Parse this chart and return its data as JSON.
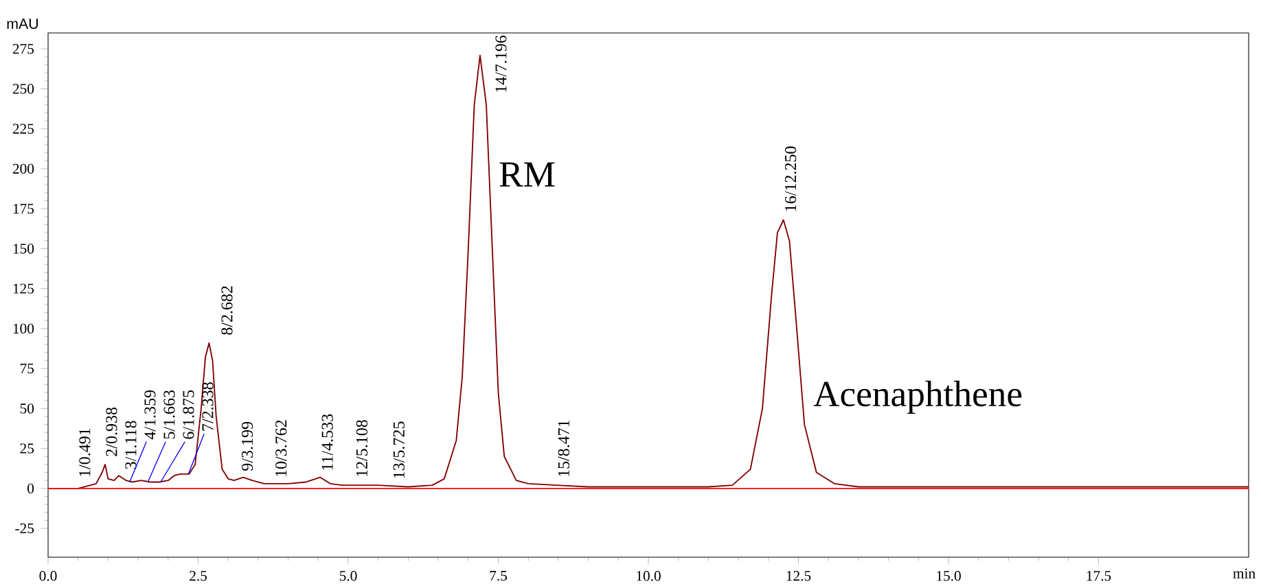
{
  "chart_data": {
    "type": "line",
    "xlabel": "min",
    "ylabel": "mAU",
    "xlim": [
      0,
      20
    ],
    "ylim": [
      -43,
      285
    ],
    "xticks": [
      {
        "value": 0,
        "label": "0.0"
      },
      {
        "value": 2.5,
        "label": "2.5"
      },
      {
        "value": 5,
        "label": "5.0"
      },
      {
        "value": 7.5,
        "label": "7.5"
      },
      {
        "value": 10,
        "label": "10.0"
      },
      {
        "value": 12.5,
        "label": "12.5"
      },
      {
        "value": 15,
        "label": "15.0"
      },
      {
        "value": 17.5,
        "label": "17.5"
      }
    ],
    "yticks": [
      -25,
      0,
      25,
      50,
      75,
      100,
      125,
      150,
      175,
      200,
      225,
      250,
      275
    ],
    "series": [
      {
        "color": "#800000",
        "x": [
          0,
          0.5,
          0.8,
          0.9,
          0.95,
          1.0,
          1.1,
          1.18,
          1.3,
          1.4,
          1.55,
          1.7,
          1.85,
          2.0,
          2.1,
          2.2,
          2.35,
          2.45,
          2.55,
          2.62,
          2.682,
          2.74,
          2.8,
          2.9,
          3.0,
          3.1,
          3.25,
          3.4,
          3.6,
          3.8,
          4.0,
          4.3,
          4.53,
          4.7,
          4.9,
          5.1,
          5.5,
          6.0,
          6.4,
          6.6,
          6.8,
          6.9,
          7.0,
          7.1,
          7.196,
          7.3,
          7.4,
          7.5,
          7.6,
          7.8,
          8.0,
          8.47,
          9.0,
          10.0,
          11.0,
          11.4,
          11.7,
          11.9,
          12.05,
          12.15,
          12.25,
          12.35,
          12.45,
          12.6,
          12.8,
          13.1,
          13.5,
          14.0,
          17.0,
          20.0
        ],
        "values": [
          0,
          0,
          3,
          10,
          15,
          6,
          5,
          8,
          5,
          4,
          5,
          4,
          4,
          5,
          8,
          9,
          9,
          15,
          50,
          82,
          91,
          80,
          45,
          12,
          6,
          5,
          7,
          5,
          3,
          3,
          3,
          4,
          7,
          3,
          2,
          2,
          2,
          1,
          2,
          6,
          30,
          70,
          150,
          240,
          271,
          240,
          150,
          60,
          20,
          5,
          3,
          2,
          1,
          1,
          1,
          2,
          12,
          50,
          120,
          160,
          168,
          155,
          110,
          40,
          10,
          3,
          1,
          1,
          1,
          1
        ]
      }
    ],
    "ref_lines": [
      {
        "axis": "y",
        "value": 0,
        "color": "#ff0000"
      }
    ],
    "annotations": [
      {
        "text": "1/0.491",
        "x": 0.491,
        "y": 2
      },
      {
        "text": "2/0.938",
        "x": 0.938,
        "y": 15
      },
      {
        "text": "3/1.118",
        "x": 1.118,
        "y": 7
      },
      {
        "text": "4/1.359",
        "x": 1.359,
        "y": 4
      },
      {
        "text": "5/1.663",
        "x": 1.663,
        "y": 4
      },
      {
        "text": "6/1.875",
        "x": 1.875,
        "y": 4
      },
      {
        "text": "7/2.338",
        "x": 2.338,
        "y": 9
      },
      {
        "text": "8/2.682",
        "x": 2.682,
        "y": 91
      },
      {
        "text": "9/3.199",
        "x": 3.199,
        "y": 6
      },
      {
        "text": "10/3.762",
        "x": 3.762,
        "y": 2
      },
      {
        "text": "11/4.533",
        "x": 4.533,
        "y": 6
      },
      {
        "text": "12/5.108",
        "x": 5.108,
        "y": 2
      },
      {
        "text": "13/5.725",
        "x": 5.725,
        "y": 1
      },
      {
        "text": "14/7.196",
        "x": 7.196,
        "y": 271
      },
      {
        "text": "15/8.471",
        "x": 8.471,
        "y": 2
      },
      {
        "text": "16/12.250",
        "x": 12.25,
        "y": 168
      },
      "RM",
      "Acenaphthene"
    ]
  }
}
